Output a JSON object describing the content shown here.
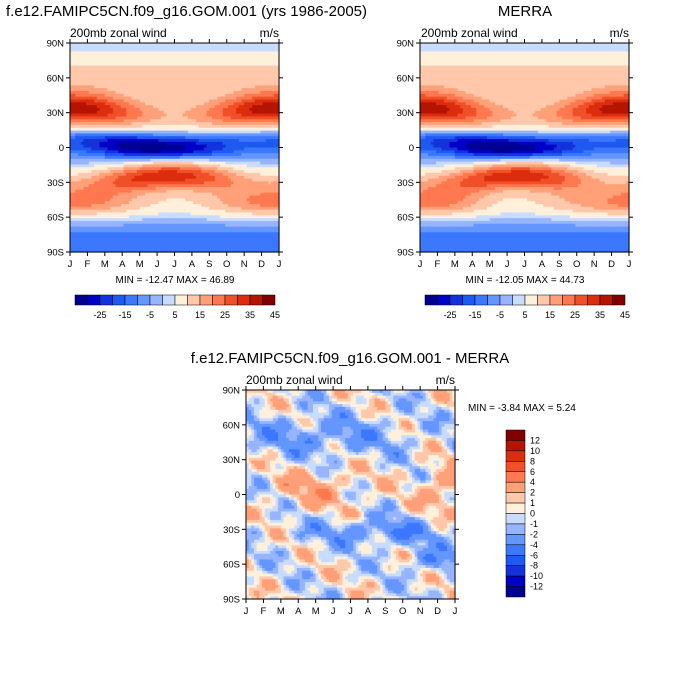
{
  "panels": [
    {
      "title": "f.e12.FAMIPC5CN.f09_g16.GOM.001 (yrs 1986-2005)",
      "left_label": "200mb zonal wind",
      "right_label": "m/s",
      "stats": "MIN = -12.47 MAX =  46.89"
    },
    {
      "title": "MERRA",
      "left_label": "200mb zonal wind",
      "right_label": "m/s",
      "stats": "MIN = -12.05 MAX =  44.73"
    },
    {
      "title": "f.e12.FAMIPC5CN.f09_g16.GOM.001 - MERRA",
      "left_label": "200mb zonal wind",
      "right_label": "m/s",
      "stats": "MIN =  -3.84 MAX =   5.24"
    }
  ],
  "chart_data": [
    {
      "type": "heatmap",
      "title": "f.e12.FAMIPC5CN.f09_g16.GOM.001 (yrs 1986-2005)",
      "x_ticks": [
        "J",
        "F",
        "M",
        "A",
        "M",
        "J",
        "J",
        "A",
        "S",
        "O",
        "N",
        "D",
        "J"
      ],
      "y_ticks": [
        "90N",
        "60N",
        "30N",
        "0",
        "30S",
        "60S",
        "90S"
      ],
      "colorbar_levels": [
        -25,
        -15,
        -5,
        5,
        15,
        25,
        35,
        45
      ],
      "colors": [
        "#000093",
        "#0000C8",
        "#1432DC",
        "#1E5AF0",
        "#3C78FF",
        "#6496FF",
        "#96B4FF",
        "#C8DCFF",
        "#FFF0DC",
        "#FFC8AA",
        "#FFA078",
        "#FF7850",
        "#F05028",
        "#DC2D0F",
        "#B41400",
        "#820000"
      ],
      "zmin": -12.47,
      "zmax": 46.89
    },
    {
      "type": "heatmap",
      "title": "MERRA",
      "x_ticks": [
        "J",
        "F",
        "M",
        "A",
        "M",
        "J",
        "J",
        "A",
        "S",
        "O",
        "N",
        "D",
        "J"
      ],
      "y_ticks": [
        "90N",
        "60N",
        "30N",
        "0",
        "30S",
        "60S",
        "90S"
      ],
      "colorbar_levels": [
        -25,
        -15,
        -5,
        5,
        15,
        25,
        35,
        45
      ],
      "colors": [
        "#000093",
        "#0000C8",
        "#1432DC",
        "#1E5AF0",
        "#3C78FF",
        "#6496FF",
        "#96B4FF",
        "#C8DCFF",
        "#FFF0DC",
        "#FFC8AA",
        "#FFA078",
        "#FF7850",
        "#F05028",
        "#DC2D0F",
        "#B41400",
        "#820000"
      ],
      "zmin": -12.05,
      "zmax": 44.73
    },
    {
      "type": "heatmap",
      "title": "f.e12.FAMIPC5CN.f09_g16.GOM.001 - MERRA",
      "x_ticks": [
        "J",
        "F",
        "M",
        "A",
        "M",
        "J",
        "J",
        "A",
        "S",
        "O",
        "N",
        "D",
        "J"
      ],
      "y_ticks": [
        "90N",
        "60N",
        "30N",
        "0",
        "30S",
        "60S",
        "90S"
      ],
      "colorbar_levels": [
        12,
        10,
        8,
        6,
        4,
        2,
        1,
        0,
        -1,
        -2,
        -4,
        -6,
        -8,
        -10,
        -12
      ],
      "colors": [
        "#820000",
        "#B41400",
        "#DC2D0F",
        "#F05028",
        "#FF7850",
        "#FFA078",
        "#FFC8AA",
        "#FFF0DC",
        "#C8DCFF",
        "#96B4FF",
        "#6496FF",
        "#3C78FF",
        "#1E5AF0",
        "#1432DC",
        "#0000C8",
        "#000093"
      ],
      "zmin": -3.84,
      "zmax": 5.24
    }
  ]
}
